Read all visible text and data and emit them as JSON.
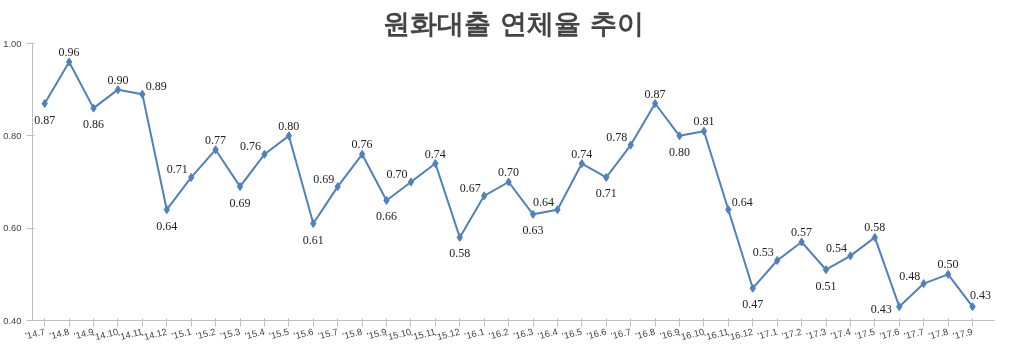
{
  "chart_data": {
    "type": "line",
    "title": "원화대출 연체율 추이",
    "categories": [
      "'14.7",
      "'14.8",
      "'14.9",
      "'14.10",
      "'14.11",
      "'14.12",
      "'15.1",
      "'15.2",
      "'15.3",
      "'15.4",
      "'15.5",
      "'15.6",
      "'15.7",
      "'15.8",
      "'15.9",
      "'15.10",
      "'15.11",
      "'15.12",
      "'16.1",
      "'16.2",
      "'16.3",
      "'16.4",
      "'16.5",
      "'16.6",
      "'16.7",
      "'16.8",
      "'16.9",
      "'16.10",
      "'16.11",
      "'16.12",
      "'17.1",
      "'17.2",
      "'17.3",
      "'17.4",
      "'17.5",
      "'17.6",
      "'17.7",
      "'17.8",
      "'17.9"
    ],
    "values": [
      0.87,
      0.96,
      0.86,
      0.9,
      0.89,
      0.64,
      0.71,
      0.77,
      0.69,
      0.76,
      0.8,
      0.61,
      0.69,
      0.76,
      0.66,
      0.7,
      0.74,
      0.58,
      0.67,
      0.7,
      0.63,
      0.64,
      0.74,
      0.71,
      0.78,
      0.87,
      0.8,
      0.81,
      0.64,
      0.47,
      0.53,
      0.57,
      0.51,
      0.54,
      0.58,
      0.43,
      0.48,
      0.5,
      0.43
    ],
    "color": "#4f81bd",
    "ylim": [
      0.4,
      1.0
    ],
    "yticks": [
      {
        "value": 0.4,
        "label": "0.40"
      },
      {
        "value": 0.6,
        "label": "0.60"
      },
      {
        "value": 0.8,
        "label": "0.80"
      },
      {
        "value": 1.0,
        "label": "1.00"
      }
    ],
    "grid": false,
    "marker": "diamond",
    "line_style": "solid",
    "value_labels": [
      "0.87",
      "0.96",
      "0.86",
      "0.90",
      "0.89",
      "0.64",
      "0.71",
      "0.77",
      "0.69",
      "0.76",
      "0.80",
      "0.61",
      "0.69",
      "0.76",
      "0.66",
      "0.70",
      "0.74",
      "0.58",
      "0.67",
      "0.70",
      "0.63",
      "0.64",
      "0.74",
      "0.71",
      "0.78",
      "0.87",
      "0.80",
      "0.81",
      "0.64",
      "0.47",
      "0.53",
      "0.57",
      "0.51",
      "0.54",
      "0.58",
      "0.43",
      "0.48",
      "0.50",
      "0.43"
    ]
  }
}
